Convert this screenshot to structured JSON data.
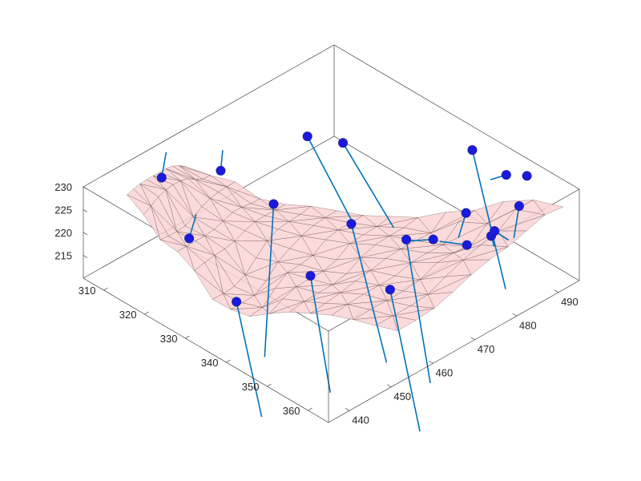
{
  "chart_data": {
    "type": "surface3d",
    "title": "",
    "xlabel": "",
    "ylabel": "",
    "zlabel": "",
    "xlim": [
      305,
      365
    ],
    "ylim": [
      435,
      495
    ],
    "zlim": [
      210,
      230
    ],
    "x_ticks": [
      "310",
      "320",
      "330",
      "340",
      "350",
      "360"
    ],
    "y_ticks": [
      "440",
      "450",
      "460",
      "470",
      "480",
      "490"
    ],
    "z_ticks": [
      "215",
      "220",
      "225",
      "230"
    ],
    "surface_color": "#f9d3d3",
    "surface_edge_color": "#5a3a3a",
    "normal_color": "#0072BD",
    "marker_color": "#1a1adf",
    "points": [
      {
        "x": 307.9,
        "y": 450.9,
        "z": 225.3,
        "tip": [
          308.4,
          451.5,
          230.8
        ]
      },
      {
        "x": 317.6,
        "y": 448.0,
        "z": 218.6,
        "tip": [
          318.6,
          448.7,
          224.0
        ]
      },
      {
        "x": 310.9,
        "y": 462.1,
        "z": 222.6,
        "tip": [
          312.4,
          461.1,
          228.4
        ]
      },
      {
        "x": 321.6,
        "y": 464.3,
        "z": 219.8,
        "tip": [
          323.5,
          460.3,
          189.4
        ]
      },
      {
        "x": 330.4,
        "y": 446.8,
        "z": 212.1,
        "tip": [
          333.4,
          449.9,
          186.9
        ]
      },
      {
        "x": 317.8,
        "y": 476.1,
        "z": 226.5,
        "tip": [
          323.4,
          481.6,
          207.5
        ]
      },
      {
        "x": 322.1,
        "y": 480.4,
        "z": 225.1,
        "tip": [
          329.4,
          485.4,
          207.8
        ]
      },
      {
        "x": 339.1,
        "y": 456.0,
        "z": 217.6,
        "tip": [
          337.0,
          462.8,
          187.4
        ]
      },
      {
        "x": 335.8,
        "y": 469.0,
        "z": 220.5,
        "tip": [
          338.8,
          474.5,
          188.9
        ]
      },
      {
        "x": 354.3,
        "y": 460.2,
        "z": 220.4,
        "tip": [
          357.5,
          464.2,
          189.0
        ]
      },
      {
        "x": 346.6,
        "y": 471.6,
        "z": 221.4,
        "tip": [
          349.1,
          474.9,
          189.6
        ]
      },
      {
        "x": 342.6,
        "y": 491.3,
        "z": 228.7,
        "tip": [
          348.3,
          493.7,
          200.0
        ]
      },
      {
        "x": 351.6,
        "y": 481.0,
        "z": 225.0,
        "tip": [
          352.5,
          478.3,
          221.4
        ]
      },
      {
        "x": 359.7,
        "y": 479.1,
        "z": 225.2,
        "tip": [
          358.4,
          481.1,
          221.2
        ]
      },
      {
        "x": 360.1,
        "y": 485.4,
        "z": 228.7,
        "tip": [
          358.3,
          485.9,
          220.5
        ]
      },
      {
        "x": 360.0,
        "y": 479.6,
        "z": 226.2,
        "tip": [
          358.2,
          484.7,
          220.6
        ]
      },
      {
        "x": 349.5,
        "y": 475.2,
        "z": 221.1,
        "tip": [
          349.7,
          468.9,
          224.1
        ]
      },
      {
        "x": 355.5,
        "y": 477.4,
        "z": 221.9,
        "tip": [
          354.0,
          472.4,
          224.5
        ]
      },
      {
        "x": 350.4,
        "y": 491.8,
        "z": 227.1,
        "tip": [
          349.8,
          488.6,
          227.4
        ]
      },
      {
        "x": 352.9,
        "y": 494.3,
        "z": 226.9,
        "tip": [
          350.1,
          496.1,
          224.8
        ]
      }
    ]
  }
}
